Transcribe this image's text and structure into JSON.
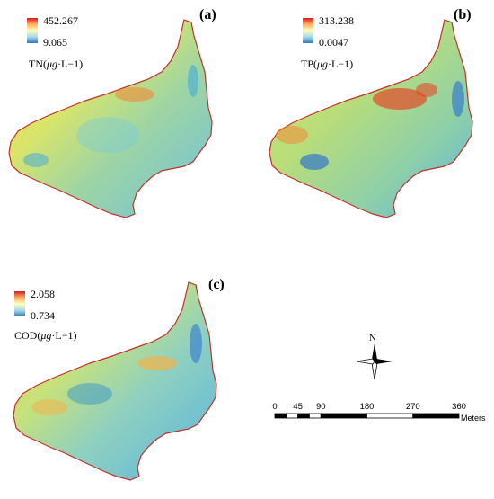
{
  "panels": [
    {
      "label": "(a)",
      "legend": {
        "max": "452.267",
        "min": "9.065",
        "title_prefix": "TN(",
        "title_unit": "μg",
        "title_suffix": "·L−1)"
      },
      "dominant_color": "#e7e35b",
      "accent_color": "#3da7e0"
    },
    {
      "label": "(b)",
      "legend": {
        "max": "313.238",
        "min": "0.0047",
        "title_prefix": "TP(",
        "title_unit": "μg",
        "title_suffix": "·L−1)"
      },
      "dominant_color": "#a8d96c",
      "accent_color": "#e24a2a"
    },
    {
      "label": "(c)",
      "legend": {
        "max": "2.058",
        "min": "0.734",
        "title_prefix": "COD(",
        "title_unit": "μg",
        "title_suffix": "·L−1)"
      },
      "dominant_color": "#7ecfd6",
      "accent_color": "#f2b24a"
    }
  ],
  "north_arrow": {
    "label": "N"
  },
  "scale_bar": {
    "ticks": [
      "0",
      "45",
      "90",
      "180",
      "270",
      "360"
    ],
    "tick_values": [
      0,
      45,
      90,
      180,
      270,
      360
    ],
    "max": 360,
    "unit": "Meters"
  },
  "colors": {
    "high": "#d7191c",
    "mid": "#ffffbf",
    "low": "#2c7bb6",
    "outline": "#c0322a"
  }
}
